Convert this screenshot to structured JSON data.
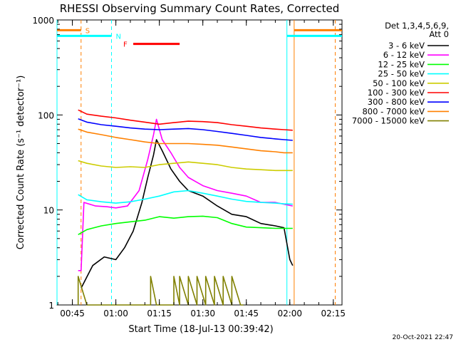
{
  "chart_data": {
    "type": "line",
    "title": "RHESSI Observing Summary Count Rates, Corrected",
    "xlabel": "Start Time (18-Jul-13 00:39:42)",
    "ylabel": "Corrected Count Rate (s⁻¹ detector⁻¹)",
    "yscale": "log",
    "ylim": [
      1,
      1000
    ],
    "xlim": [
      "00:39:42",
      "02:18:00"
    ],
    "y_ticks": [
      {
        "value": 1,
        "label": "1"
      },
      {
        "value": 10,
        "label": "10"
      },
      {
        "value": 100,
        "label": "100"
      },
      {
        "value": 1000,
        "label": "1000"
      }
    ],
    "x_ticks": [
      {
        "value": "00:45",
        "label": "00:45"
      },
      {
        "value": "01:00",
        "label": "01:00"
      },
      {
        "value": "01:15",
        "label": "01:15"
      },
      {
        "value": "01:30",
        "label": "01:30"
      },
      {
        "value": "01:45",
        "label": "01:45"
      },
      {
        "value": "02:00",
        "label": "02:00"
      },
      {
        "value": "02:15",
        "label": "02:15"
      }
    ],
    "legend_title": "Det 1,3,4,5,6,9,",
    "legend_subtitle": "Att 0",
    "legend_position": "right",
    "grid": false,
    "series": [
      {
        "name": "3 - 6 keV",
        "color": "#000000",
        "points": [
          [
            "00:48",
            1.5
          ],
          [
            "00:52",
            2.6
          ],
          [
            "00:56",
            3.2
          ],
          [
            "01:00",
            3.0
          ],
          [
            "01:03",
            4.0
          ],
          [
            "01:06",
            6.0
          ],
          [
            "01:09",
            12
          ],
          [
            "01:11",
            22
          ],
          [
            "01:13",
            38
          ],
          [
            "01:14",
            55
          ],
          [
            "01:16",
            42
          ],
          [
            "01:19",
            27
          ],
          [
            "01:22",
            20
          ],
          [
            "01:25",
            16
          ],
          [
            "01:30",
            14
          ],
          [
            "01:35",
            11
          ],
          [
            "01:40",
            9.0
          ],
          [
            "01:45",
            8.5
          ],
          [
            "01:50",
            7.2
          ],
          [
            "01:55",
            6.8
          ],
          [
            "01:58",
            6.5
          ],
          [
            "02:00",
            3.0
          ],
          [
            "02:01",
            2.6
          ]
        ]
      },
      {
        "name": "6 - 12 keV",
        "color": "#ff00ff",
        "points": [
          [
            "00:47",
            2.3
          ],
          [
            "00:48",
            2.3
          ],
          [
            "00:49",
            12
          ],
          [
            "00:53",
            11
          ],
          [
            "00:57",
            10.8
          ],
          [
            "01:00",
            10.5
          ],
          [
            "01:04",
            11
          ],
          [
            "01:08",
            16
          ],
          [
            "01:11",
            34
          ],
          [
            "01:13",
            62
          ],
          [
            "01:14",
            90
          ],
          [
            "01:16",
            55
          ],
          [
            "01:19",
            40
          ],
          [
            "01:22",
            28
          ],
          [
            "01:25",
            22
          ],
          [
            "01:30",
            18
          ],
          [
            "01:35",
            16
          ],
          [
            "01:40",
            15
          ],
          [
            "01:45",
            14
          ],
          [
            "01:50",
            12
          ],
          [
            "01:55",
            12
          ],
          [
            "01:58",
            11.5
          ],
          [
            "02:01",
            11
          ]
        ]
      },
      {
        "name": "12 - 25 keV",
        "color": "#00ff00",
        "points": [
          [
            "00:47",
            5.5
          ],
          [
            "00:50",
            6.2
          ],
          [
            "00:55",
            6.8
          ],
          [
            "01:00",
            7.2
          ],
          [
            "01:05",
            7.5
          ],
          [
            "01:10",
            7.8
          ],
          [
            "01:15",
            8.5
          ],
          [
            "01:20",
            8.2
          ],
          [
            "01:25",
            8.5
          ],
          [
            "01:30",
            8.6
          ],
          [
            "01:35",
            8.3
          ],
          [
            "01:40",
            7.2
          ],
          [
            "01:45",
            6.6
          ],
          [
            "01:50",
            6.5
          ],
          [
            "01:55",
            6.4
          ],
          [
            "01:58",
            6.4
          ],
          [
            "02:01",
            6.4
          ]
        ]
      },
      {
        "name": "25 - 50 keV",
        "color": "#00ffff",
        "points": [
          [
            "00:47",
            14.5
          ],
          [
            "00:50",
            12.8
          ],
          [
            "00:55",
            12.2
          ],
          [
            "01:00",
            11.8
          ],
          [
            "01:05",
            12.2
          ],
          [
            "01:10",
            13.0
          ],
          [
            "01:15",
            14.0
          ],
          [
            "01:20",
            15.5
          ],
          [
            "01:25",
            16.0
          ],
          [
            "01:30",
            15.0
          ],
          [
            "01:35",
            14.0
          ],
          [
            "01:40",
            13.0
          ],
          [
            "01:45",
            12.3
          ],
          [
            "01:50",
            12.0
          ],
          [
            "01:55",
            11.8
          ],
          [
            "01:58",
            11.6
          ],
          [
            "02:01",
            11.5
          ]
        ]
      },
      {
        "name": "50 - 100 keV",
        "color": "#cccc00",
        "points": [
          [
            "00:47",
            33
          ],
          [
            "00:50",
            31
          ],
          [
            "00:55",
            29
          ],
          [
            "01:00",
            28
          ],
          [
            "01:05",
            28.5
          ],
          [
            "01:10",
            28
          ],
          [
            "01:15",
            30
          ],
          [
            "01:20",
            31
          ],
          [
            "01:25",
            32
          ],
          [
            "01:30",
            31
          ],
          [
            "01:35",
            30
          ],
          [
            "01:40",
            28
          ],
          [
            "01:45",
            27
          ],
          [
            "01:50",
            26.5
          ],
          [
            "01:55",
            26
          ],
          [
            "01:58",
            26
          ],
          [
            "02:01",
            26
          ]
        ]
      },
      {
        "name": "100 - 300 keV",
        "color": "#ff0000",
        "points": [
          [
            "00:47",
            113
          ],
          [
            "00:50",
            102
          ],
          [
            "00:55",
            97
          ],
          [
            "01:00",
            93
          ],
          [
            "01:05",
            88
          ],
          [
            "01:10",
            84
          ],
          [
            "01:15",
            80
          ],
          [
            "01:20",
            83
          ],
          [
            "01:25",
            86
          ],
          [
            "01:30",
            85
          ],
          [
            "01:35",
            83
          ],
          [
            "01:40",
            79
          ],
          [
            "01:45",
            76
          ],
          [
            "01:50",
            73
          ],
          [
            "01:55",
            71
          ],
          [
            "01:58",
            70
          ],
          [
            "02:01",
            69
          ]
        ]
      },
      {
        "name": "300 - 800 keV",
        "color": "#0000ff",
        "points": [
          [
            "00:47",
            91
          ],
          [
            "00:50",
            84
          ],
          [
            "00:55",
            79
          ],
          [
            "01:00",
            76
          ],
          [
            "01:05",
            73
          ],
          [
            "01:10",
            71
          ],
          [
            "01:15",
            70
          ],
          [
            "01:20",
            71
          ],
          [
            "01:25",
            72
          ],
          [
            "01:30",
            70
          ],
          [
            "01:35",
            67
          ],
          [
            "01:40",
            64
          ],
          [
            "01:45",
            61
          ],
          [
            "01:50",
            58
          ],
          [
            "01:55",
            56
          ],
          [
            "01:58",
            55
          ],
          [
            "02:01",
            54
          ]
        ]
      },
      {
        "name": "800 - 7000 keV",
        "color": "#ff8000",
        "points": [
          [
            "00:47",
            71
          ],
          [
            "00:50",
            66
          ],
          [
            "00:55",
            62
          ],
          [
            "01:00",
            58
          ],
          [
            "01:05",
            55
          ],
          [
            "01:10",
            52
          ],
          [
            "01:15",
            50
          ],
          [
            "01:20",
            50
          ],
          [
            "01:25",
            50
          ],
          [
            "01:30",
            49
          ],
          [
            "01:35",
            48
          ],
          [
            "01:40",
            46
          ],
          [
            "01:45",
            44
          ],
          [
            "01:50",
            42
          ],
          [
            "01:55",
            41
          ],
          [
            "01:58",
            40
          ],
          [
            "02:01",
            40
          ]
        ]
      },
      {
        "name": "7000 - 15000 keV",
        "color": "#808000",
        "points": [
          [
            "00:47",
            1.0
          ],
          [
            "00:47",
            2.0
          ],
          [
            "00:50",
            1.0
          ],
          [
            "00:51",
            1.0
          ],
          [
            "01:12",
            1.0
          ],
          [
            "01:12",
            2.0
          ],
          [
            "01:14",
            1.0
          ],
          [
            "01:20",
            1.0
          ],
          [
            "01:20",
            2.0
          ],
          [
            "01:22",
            1.0
          ],
          [
            "01:22",
            2.0
          ],
          [
            "01:25",
            1.0
          ],
          [
            "01:25",
            2.0
          ],
          [
            "01:28",
            1.0
          ],
          [
            "01:28",
            2.0
          ],
          [
            "01:31",
            1.0
          ],
          [
            "01:31",
            2.0
          ],
          [
            "01:34",
            1.0
          ],
          [
            "01:34",
            2.0
          ],
          [
            "01:37",
            1.0
          ],
          [
            "01:37",
            2.0
          ],
          [
            "01:40",
            1.0
          ],
          [
            "01:40",
            2.0
          ],
          [
            "01:43",
            1.0
          ],
          [
            "01:44",
            1.0
          ]
        ]
      }
    ],
    "markers": [
      {
        "label": "S",
        "color": "#ff8000",
        "start": "00:39:42",
        "end": "00:48:00",
        "level": 780
      },
      {
        "label": "N",
        "color": "#00ffff",
        "start": "00:39:42",
        "end": "00:58:30",
        "level": 680
      },
      {
        "label": "F",
        "color": "#ff0000",
        "start": "01:06:00",
        "end": "01:22:00",
        "level": 560
      },
      {
        "label": "",
        "color": "#00ffff",
        "start": "01:59:00",
        "end": "02:18:00",
        "level": 680
      },
      {
        "label": "",
        "color": "#ff8000",
        "start": "02:01:30",
        "end": "02:18:00",
        "level": 780
      }
    ],
    "vertical_lines": [
      {
        "time": "00:39:42",
        "color": "#00ffff",
        "style": "solid"
      },
      {
        "time": "00:48:00",
        "color": "#ff8000",
        "style": "dashed"
      },
      {
        "time": "00:58:30",
        "color": "#00ffff",
        "style": "dashed"
      },
      {
        "time": "01:59:00",
        "color": "#00ffff",
        "style": "solid"
      },
      {
        "time": "02:01:30",
        "color": "#ff8000",
        "style": "solid"
      },
      {
        "time": "02:15:40",
        "color": "#ff8000",
        "style": "dashed"
      }
    ]
  },
  "footer": {
    "timestamp": "20-Oct-2021 22:47"
  }
}
